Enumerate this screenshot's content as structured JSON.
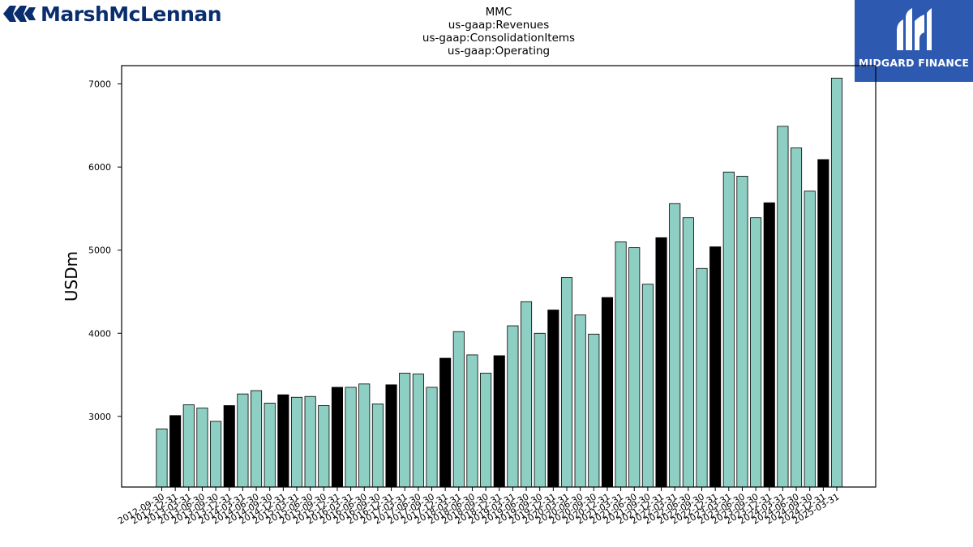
{
  "brand_left": {
    "name": "MarshMcLennan",
    "logo_color": "#0a2d6e"
  },
  "brand_right": {
    "name": "MIDGARD FINANCE",
    "bg_color": "#2d59b0"
  },
  "chart_data": {
    "type": "bar",
    "title_lines": [
      "MMC",
      "us-gaap:Revenues",
      "us-gaap:ConsolidationItems",
      "us-gaap:Operating"
    ],
    "xlabel": "",
    "ylabel": "USDm",
    "ylim": [
      2150,
      7220
    ],
    "yticks": [
      3000,
      4000,
      5000,
      6000,
      7000
    ],
    "grid": false,
    "colors": {
      "quarter": "#8ecfc3",
      "year_end": "#000000"
    },
    "categories": [
      "2012-09-30",
      "2012-12-31",
      "2013-03-31",
      "2013-06-30",
      "2013-09-30",
      "2013-12-31",
      "2014-03-31",
      "2014-06-30",
      "2014-09-30",
      "2014-12-31",
      "2015-03-31",
      "2015-06-30",
      "2015-09-30",
      "2015-12-31",
      "2016-03-31",
      "2016-06-30",
      "2016-09-30",
      "2016-12-31",
      "2017-03-31",
      "2017-06-30",
      "2017-09-30",
      "2017-12-31",
      "2018-03-31",
      "2018-06-30",
      "2018-09-30",
      "2018-12-31",
      "2019-03-31",
      "2019-06-30",
      "2019-09-30",
      "2019-12-31",
      "2020-03-31",
      "2020-06-30",
      "2020-09-30",
      "2020-12-31",
      "2021-03-31",
      "2021-06-30",
      "2021-09-30",
      "2021-12-31",
      "2022-03-31",
      "2022-06-30",
      "2022-09-30",
      "2022-12-31",
      "2023-03-31",
      "2023-06-30",
      "2023-09-30",
      "2023-12-31",
      "2024-03-31",
      "2024-06-30",
      "2024-09-30",
      "2024-12-31",
      "2025-03-31"
    ],
    "values": [
      2850,
      3010,
      3140,
      3100,
      2940,
      3130,
      3270,
      3310,
      3160,
      3260,
      3230,
      3240,
      3130,
      3350,
      3350,
      3390,
      3150,
      3380,
      3520,
      3510,
      3350,
      3700,
      4020,
      3740,
      3520,
      3730,
      4090,
      4380,
      4000,
      4280,
      4670,
      4220,
      3990,
      4430,
      5100,
      5030,
      4590,
      5150,
      5560,
      5390,
      4780,
      5040,
      5940,
      5890,
      5390,
      5570,
      6490,
      6230,
      5710,
      6090,
      7070
    ],
    "year_end": [
      false,
      true,
      false,
      false,
      false,
      true,
      false,
      false,
      false,
      true,
      false,
      false,
      false,
      true,
      false,
      false,
      false,
      true,
      false,
      false,
      false,
      true,
      false,
      false,
      false,
      true,
      false,
      false,
      false,
      true,
      false,
      false,
      false,
      true,
      false,
      false,
      false,
      true,
      false,
      false,
      false,
      true,
      false,
      false,
      false,
      true,
      false,
      false,
      false,
      true,
      false
    ]
  }
}
